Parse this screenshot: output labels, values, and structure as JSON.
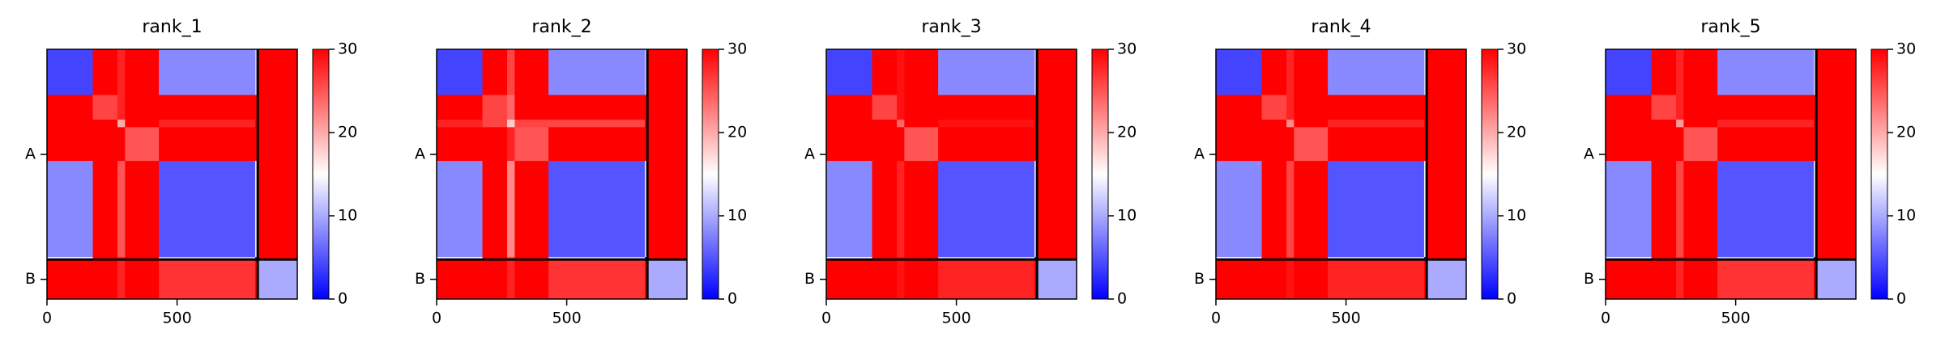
{
  "chart_data": [
    {
      "type": "heatmap",
      "title": "rank_1",
      "chains": [
        {
          "name": "A",
          "start": 0,
          "end": 810
        },
        {
          "name": "B",
          "start": 810,
          "end": 962
        }
      ],
      "edges": [
        0,
        176,
        271,
        300,
        430,
        800,
        810,
        962
      ],
      "matrix": [
        [
          4,
          30,
          28,
          30,
          8,
          12,
          30
        ],
        [
          30,
          26,
          28,
          30,
          30,
          30,
          30
        ],
        [
          30,
          30,
          20,
          30,
          28,
          30,
          30
        ],
        [
          30,
          30,
          30,
          25,
          30,
          30,
          30
        ],
        [
          8,
          30,
          25,
          30,
          5,
          14,
          30
        ],
        [
          14,
          30,
          28,
          30,
          12,
          2,
          30
        ],
        [
          30,
          30,
          28,
          30,
          27,
          30,
          10
        ]
      ],
      "xlim": [
        0,
        962
      ],
      "xticks": [
        0,
        500
      ],
      "ylim": [
        0,
        962
      ],
      "colorbar": {
        "lim": [
          0,
          30
        ],
        "ticks": [
          0,
          10,
          20,
          30
        ],
        "colors": [
          "#0000ff",
          "#ffffff",
          "#ff0000"
        ]
      }
    },
    {
      "type": "heatmap",
      "title": "rank_2",
      "chains": [
        {
          "name": "A",
          "start": 0,
          "end": 810
        },
        {
          "name": "B",
          "start": 810,
          "end": 962
        }
      ],
      "edges": [
        0,
        176,
        271,
        300,
        430,
        800,
        810,
        962
      ],
      "matrix": [
        [
          4,
          30,
          26,
          30,
          8,
          12,
          30
        ],
        [
          30,
          26,
          24,
          30,
          30,
          30,
          30
        ],
        [
          28,
          26,
          18,
          26,
          26,
          30,
          30
        ],
        [
          30,
          30,
          28,
          25,
          30,
          30,
          30
        ],
        [
          8,
          30,
          22,
          30,
          5,
          14,
          30
        ],
        [
          14,
          30,
          26,
          30,
          12,
          2,
          30
        ],
        [
          30,
          30,
          28,
          30,
          27,
          30,
          10
        ]
      ],
      "xlim": [
        0,
        962
      ],
      "xticks": [
        0,
        500
      ],
      "ylim": [
        0,
        962
      ],
      "colorbar": {
        "lim": [
          0,
          30
        ],
        "ticks": [
          0,
          10,
          20,
          30
        ],
        "colors": [
          "#0000ff",
          "#ffffff",
          "#ff0000"
        ]
      }
    },
    {
      "type": "heatmap",
      "title": "rank_3",
      "chains": [
        {
          "name": "A",
          "start": 0,
          "end": 810
        },
        {
          "name": "B",
          "start": 810,
          "end": 962
        }
      ],
      "edges": [
        0,
        176,
        271,
        300,
        430,
        800,
        810,
        962
      ],
      "matrix": [
        [
          4,
          30,
          29,
          30,
          8,
          12,
          30
        ],
        [
          30,
          26,
          29,
          30,
          30,
          30,
          30
        ],
        [
          30,
          30,
          24,
          30,
          29,
          30,
          30
        ],
        [
          30,
          30,
          30,
          25,
          30,
          30,
          30
        ],
        [
          8,
          30,
          28,
          30,
          5,
          14,
          30
        ],
        [
          14,
          30,
          29,
          30,
          12,
          2,
          30
        ],
        [
          30,
          30,
          29,
          30,
          28,
          30,
          10
        ]
      ],
      "xlim": [
        0,
        962
      ],
      "xticks": [
        0,
        500
      ],
      "ylim": [
        0,
        962
      ],
      "colorbar": {
        "lim": [
          0,
          30
        ],
        "ticks": [
          0,
          10,
          20,
          30
        ],
        "colors": [
          "#0000ff",
          "#ffffff",
          "#ff0000"
        ]
      }
    },
    {
      "type": "heatmap",
      "title": "rank_4",
      "chains": [
        {
          "name": "A",
          "start": 0,
          "end": 810
        },
        {
          "name": "B",
          "start": 810,
          "end": 962
        }
      ],
      "edges": [
        0,
        176,
        271,
        300,
        430,
        800,
        810,
        962
      ],
      "matrix": [
        [
          4,
          30,
          28,
          30,
          8,
          12,
          30
        ],
        [
          30,
          26,
          28,
          30,
          30,
          30,
          30
        ],
        [
          30,
          30,
          22,
          30,
          28,
          30,
          30
        ],
        [
          30,
          30,
          30,
          25,
          30,
          30,
          30
        ],
        [
          8,
          30,
          26,
          30,
          5,
          14,
          30
        ],
        [
          14,
          30,
          28,
          30,
          12,
          2,
          30
        ],
        [
          30,
          30,
          29,
          30,
          28,
          30,
          10
        ]
      ],
      "xlim": [
        0,
        962
      ],
      "xticks": [
        0,
        500
      ],
      "ylim": [
        0,
        962
      ],
      "colorbar": {
        "lim": [
          0,
          30
        ],
        "ticks": [
          0,
          10,
          20,
          30
        ],
        "colors": [
          "#0000ff",
          "#ffffff",
          "#ff0000"
        ]
      }
    },
    {
      "type": "heatmap",
      "title": "rank_5",
      "chains": [
        {
          "name": "A",
          "start": 0,
          "end": 810
        },
        {
          "name": "B",
          "start": 810,
          "end": 962
        }
      ],
      "edges": [
        0,
        176,
        271,
        300,
        430,
        800,
        810,
        962
      ],
      "matrix": [
        [
          4,
          30,
          28,
          30,
          8,
          12,
          30
        ],
        [
          30,
          26,
          28,
          30,
          30,
          30,
          30
        ],
        [
          30,
          30,
          21,
          30,
          28,
          30,
          30
        ],
        [
          30,
          30,
          30,
          25,
          30,
          30,
          30
        ],
        [
          8,
          30,
          26,
          30,
          5,
          14,
          30
        ],
        [
          14,
          30,
          28,
          30,
          12,
          2,
          30
        ],
        [
          30,
          30,
          28,
          30,
          27,
          30,
          10
        ]
      ],
      "xlim": [
        0,
        962
      ],
      "xticks": [
        0,
        500
      ],
      "ylim": [
        0,
        962
      ],
      "colorbar": {
        "lim": [
          0,
          30
        ],
        "ticks": [
          0,
          10,
          20,
          30
        ],
        "colors": [
          "#0000ff",
          "#ffffff",
          "#ff0000"
        ]
      }
    }
  ]
}
